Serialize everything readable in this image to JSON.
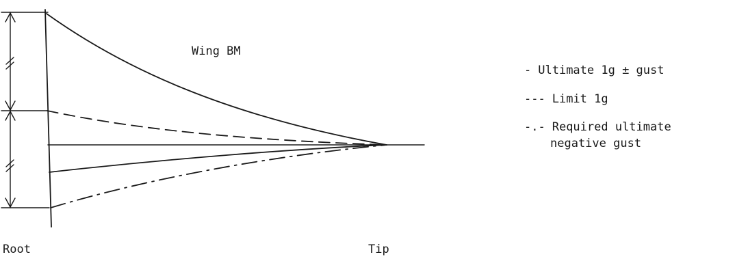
{
  "diagram": {
    "title": "Wing BM",
    "axis": {
      "root_label": "Root",
      "tip_label": "Tip"
    },
    "legend": [
      {
        "prefix": "-",
        "text": "Ultimate 1g ± gust",
        "line_style": "solid"
      },
      {
        "prefix": "---",
        "text": "Limit 1g",
        "line_style": "dashed"
      },
      {
        "prefix": "-.-",
        "text": "Required ultimate",
        "text_line2": "negative gust",
        "line_style": "dash-dot"
      }
    ]
  }
}
